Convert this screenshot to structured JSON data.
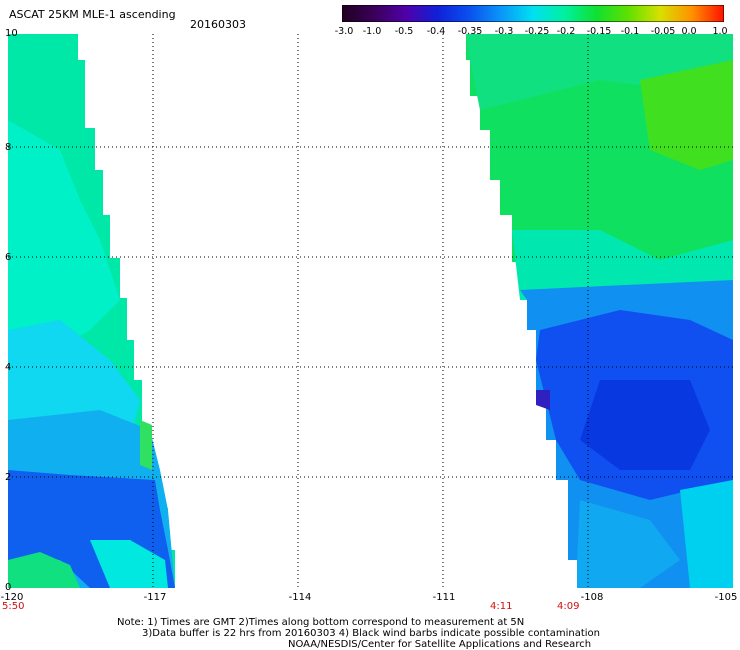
{
  "title": "ASCAT 25KM MLE-1 ascending",
  "date": "20160303",
  "colorbar": {
    "labels": [
      "-3.0",
      "-1.0",
      "-0.5",
      "-0.4",
      "-0.35",
      "-0.3",
      "-0.25",
      "-0.2",
      "-0.15",
      "-0.1",
      "-0.05",
      "0.0",
      "1.0"
    ],
    "colors": [
      "#200020",
      "#3a0058",
      "#5000a8",
      "#1020d8",
      "#0a50f0",
      "#0a96f8",
      "#00e0f0",
      "#00f0a0",
      "#10e030",
      "#60e000",
      "#d8e000",
      "#ff9000",
      "#ff1000"
    ]
  },
  "y_axis": {
    "ticks": [
      "0",
      "2",
      "4",
      "6",
      "8",
      "10"
    ],
    "range": [
      0,
      10
    ]
  },
  "x_axis": {
    "ticks": [
      "-120",
      "-117",
      "-114",
      "-111",
      "-108",
      "-105"
    ],
    "range": [
      -120,
      -105
    ]
  },
  "time_labels": {
    "left": "5:50",
    "mid1": "4:11",
    "mid2": "4:09"
  },
  "notes": [
    "Note: 1) Times are GMT 2)Times along bottom correspond to measurement at 5N",
    "3)Data buffer is 22 hrs from 20160303 4) Black wind barbs indicate possible contamination",
    "NOAA/NESDIS/Center for Satellite Applications and Research"
  ],
  "colors": {
    "fill_green": "#00e890",
    "fill_cyan": "#00f0e0",
    "fill_blue": "#1050f0",
    "grid": "#000000"
  }
}
